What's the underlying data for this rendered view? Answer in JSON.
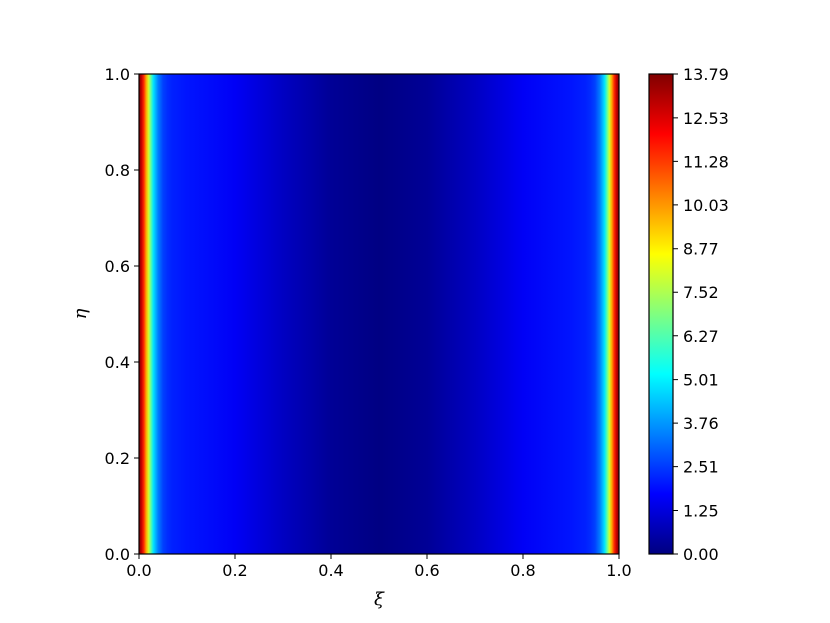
{
  "chart_data": {
    "type": "heatmap",
    "title": "",
    "xlabel": "ξ",
    "ylabel": "η",
    "xlim": [
      0.0,
      1.0
    ],
    "ylim": [
      0.0,
      1.0
    ],
    "x_ticks": [
      "0.0",
      "0.2",
      "0.4",
      "0.6",
      "0.8",
      "1.0"
    ],
    "y_ticks": [
      "0.0",
      "0.2",
      "0.4",
      "0.6",
      "0.8",
      "1.0"
    ],
    "colormap": "jet",
    "colorbar": {
      "min": 0.0,
      "max": 13.79,
      "tick_values": [
        0.0,
        1.25,
        2.51,
        3.76,
        5.01,
        6.27,
        7.52,
        8.77,
        10.03,
        11.28,
        12.53,
        13.79
      ],
      "tick_labels": [
        "0.00",
        "1.25",
        "2.51",
        "3.76",
        "5.01",
        "6.27",
        "7.52",
        "8.77",
        "10.03",
        "11.28",
        "12.53",
        "13.79"
      ]
    },
    "profile_along_xi": {
      "note_variation": "field varies only along ξ, constant along η",
      "xi": [
        0.0,
        0.005,
        0.01,
        0.015,
        0.02,
        0.025,
        0.03,
        0.04,
        0.05,
        0.06,
        0.07,
        0.1,
        0.2,
        0.3,
        0.4,
        0.5,
        0.6,
        0.7,
        0.8,
        0.9,
        0.93,
        0.94,
        0.95,
        0.96,
        0.97,
        0.975,
        0.98,
        0.985,
        0.99,
        0.995,
        1.0
      ],
      "value": [
        13.79,
        12.9,
        11.5,
        9.8,
        8.0,
        6.4,
        4.8,
        3.4,
        2.6,
        2.3,
        2.15,
        2.0,
        1.6,
        0.9,
        0.3,
        0.05,
        0.3,
        0.9,
        1.6,
        2.0,
        2.15,
        2.3,
        2.6,
        3.4,
        4.8,
        6.4,
        8.0,
        9.8,
        11.5,
        12.9,
        13.79
      ]
    }
  }
}
